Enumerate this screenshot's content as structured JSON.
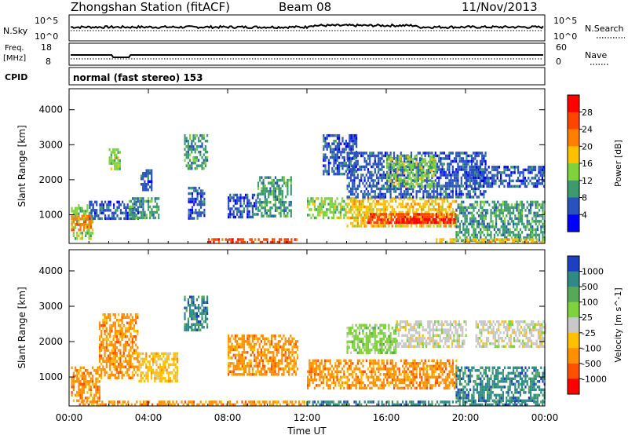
{
  "header": {
    "title": "Zhongshan Station (fitACF)",
    "beam": "Beam 08",
    "date": "11/Nov/2013"
  },
  "strips": {
    "nsky_label": "N.Sky",
    "nsky_ticks": [
      "10^5",
      "10^0"
    ],
    "nsearch_label": "N.Search",
    "nsearch_ticks": [
      "10^5",
      "10^0"
    ],
    "freq_label": "Freq.",
    "freq_unit": "[MHz]",
    "freq_ticks": [
      "18",
      "8"
    ],
    "nave_label": "Nave",
    "nave_ticks": [
      "60",
      "0"
    ],
    "cpid_label": "CPID",
    "cpid_text": "normal (fast stereo) 153"
  },
  "chart_data": [
    {
      "type": "heatmap",
      "title": "",
      "xlabel": "Time UT",
      "ylabel": "Slant Range [km]",
      "x_ticks": [
        "00:00",
        "04:00",
        "08:00",
        "12:00",
        "16:00",
        "20:00",
        "00:00"
      ],
      "x_hours": [
        0,
        4,
        8,
        12,
        16,
        20,
        24
      ],
      "y_ticks": [
        1000,
        2000,
        3000,
        4000
      ],
      "ylim": [
        180,
        4600
      ],
      "colorbar": {
        "label": "Power [dB]",
        "ticks": [
          "28",
          "24",
          "20",
          "16",
          "12",
          "8",
          "4"
        ],
        "colors": [
          "#ff0000",
          "#ff4400",
          "#ff7f00",
          "#ffc000",
          "#7fd23c",
          "#3c9a6e",
          "#2a52be",
          "#0000ff"
        ]
      },
      "regions": [
        {
          "t0": 0.1,
          "t1": 1.2,
          "r0": 300,
          "r1": 1300,
          "c": 4
        },
        {
          "t0": 0.1,
          "t1": 1.2,
          "r0": 600,
          "r1": 1000,
          "c": 2
        },
        {
          "t0": 1.0,
          "t1": 3.5,
          "r0": 900,
          "r1": 1400,
          "c": 6
        },
        {
          "t0": 2.0,
          "t1": 2.6,
          "r0": 2300,
          "r1": 2900,
          "c": 4
        },
        {
          "t0": 3.0,
          "t1": 4.5,
          "r0": 900,
          "r1": 1500,
          "c": 5
        },
        {
          "t0": 3.6,
          "t1": 4.2,
          "r0": 1700,
          "r1": 2300,
          "c": 6
        },
        {
          "t0": 5.8,
          "t1": 7.0,
          "r0": 2300,
          "r1": 3300,
          "c": 5
        },
        {
          "t0": 6.0,
          "t1": 6.8,
          "r0": 900,
          "r1": 1800,
          "c": 6
        },
        {
          "t0": 8.0,
          "t1": 9.5,
          "r0": 900,
          "r1": 1600,
          "c": 6
        },
        {
          "t0": 9.5,
          "t1": 11.2,
          "r0": 1000,
          "r1": 2100,
          "c": 5
        },
        {
          "t0": 12.0,
          "t1": 14.0,
          "r0": 900,
          "r1": 1500,
          "c": 4
        },
        {
          "t0": 12.8,
          "t1": 14.5,
          "r0": 2200,
          "r1": 3300,
          "c": 6
        },
        {
          "t0": 14.0,
          "t1": 19.5,
          "r0": 700,
          "r1": 1500,
          "c": 3
        },
        {
          "t0": 15.0,
          "t1": 19.5,
          "r0": 750,
          "r1": 1050,
          "c": 1
        },
        {
          "t0": 16.5,
          "t1": 19.5,
          "r0": 750,
          "r1": 900,
          "c": 0
        },
        {
          "t0": 14.0,
          "t1": 21.0,
          "r0": 1500,
          "r1": 2800,
          "c": 6
        },
        {
          "t0": 16.0,
          "t1": 18.5,
          "r0": 1800,
          "r1": 2700,
          "c": 4
        },
        {
          "t0": 19.5,
          "t1": 24.0,
          "r0": 300,
          "r1": 1400,
          "c": 5
        },
        {
          "t0": 20.0,
          "t1": 24.0,
          "r0": 1800,
          "r1": 2400,
          "c": 6
        },
        {
          "t0": 7.0,
          "t1": 11.5,
          "r0": 200,
          "r1": 330,
          "c": 1
        },
        {
          "t0": 18.5,
          "t1": 24.0,
          "r0": 200,
          "r1": 330,
          "c": 3
        }
      ]
    },
    {
      "type": "heatmap",
      "title": "",
      "xlabel": "Time UT",
      "ylabel": "Slant Range [km]",
      "x_ticks": [
        "00:00",
        "04:00",
        "08:00",
        "12:00",
        "16:00",
        "20:00",
        "00:00"
      ],
      "x_hours": [
        0,
        4,
        8,
        12,
        16,
        20,
        24
      ],
      "y_ticks": [
        1000,
        2000,
        3000,
        4000
      ],
      "ylim": [
        180,
        4600
      ],
      "colorbar": {
        "label": "Velocity [m s^-1]",
        "ticks": [
          "1000",
          "500",
          "100",
          "25",
          "-25",
          "-100",
          "-500",
          "-1000"
        ],
        "colors": [
          "#1e3fbf",
          "#2f8a84",
          "#58a85a",
          "#7fd23c",
          "#c8c8c8",
          "#ffc000",
          "#ff9000",
          "#ff5000",
          "#ff0000"
        ]
      },
      "regions": [
        {
          "t0": 0.1,
          "t1": 1.5,
          "r0": 300,
          "r1": 1300,
          "c": 6
        },
        {
          "t0": 1.5,
          "t1": 3.5,
          "r0": 1000,
          "r1": 2800,
          "c": 6
        },
        {
          "t0": 3.5,
          "t1": 5.5,
          "r0": 900,
          "r1": 1700,
          "c": 5
        },
        {
          "t0": 5.8,
          "t1": 7.0,
          "r0": 2300,
          "r1": 3300,
          "c": 1
        },
        {
          "t0": 8.0,
          "t1": 11.5,
          "r0": 1100,
          "r1": 2200,
          "c": 6
        },
        {
          "t0": 12.0,
          "t1": 19.5,
          "r0": 700,
          "r1": 1500,
          "c": 6
        },
        {
          "t0": 14.0,
          "t1": 16.5,
          "r0": 1700,
          "r1": 2500,
          "c": 3
        },
        {
          "t0": 16.5,
          "t1": 20.0,
          "r0": 1900,
          "r1": 2600,
          "c": 4
        },
        {
          "t0": 20.5,
          "t1": 24.0,
          "r0": 1900,
          "r1": 2600,
          "c": 4
        },
        {
          "t0": 19.5,
          "t1": 24.0,
          "r0": 300,
          "r1": 1300,
          "c": 1
        },
        {
          "t0": 0.5,
          "t1": 12.0,
          "r0": 200,
          "r1": 330,
          "c": 6
        },
        {
          "t0": 12.0,
          "t1": 24.0,
          "r0": 200,
          "r1": 330,
          "c": 1
        }
      ]
    }
  ]
}
